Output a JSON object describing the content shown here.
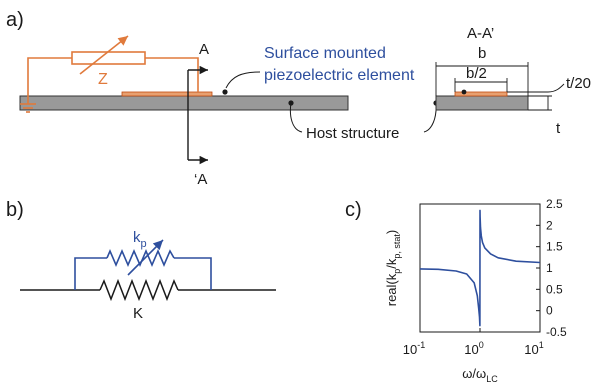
{
  "panels": {
    "a": {
      "label": "a)",
      "section_title": "A-A’",
      "section_a_top": "A",
      "section_a_bottom": "‘A",
      "impedance": "Z",
      "piezo_label_line1": "Surface mounted",
      "piezo_label_line2": "piezoelectric element",
      "host_label": "Host structure",
      "dim_b": "b",
      "dim_b_half": "b/2",
      "dim_t": "t",
      "dim_t20": "t/20",
      "colors": {
        "circuit": "#e07a3c",
        "label_blue": "#2e4f9e",
        "host_fill": "#999999"
      }
    },
    "b": {
      "label": "b)",
      "kp_main": "k",
      "kp_sub": "p",
      "spring": "K",
      "colors": {
        "kp": "#2e4f9e",
        "spring": "#1a1a1a"
      }
    },
    "c": {
      "label": "c)"
    }
  },
  "chart_data": {
    "type": "line",
    "xscale": "log",
    "xlim": [
      0.1,
      10
    ],
    "ylim": [
      -0.5,
      2.5
    ],
    "x_ticks": [
      {
        "base": "10",
        "exp": "-1"
      },
      {
        "base": "10",
        "exp": "0"
      },
      {
        "base": "10",
        "exp": "1"
      }
    ],
    "y_ticks": [
      "2.5",
      "2",
      "1.5",
      "1",
      "0.5",
      "0",
      "-0.5"
    ],
    "y_tick_values": [
      2.5,
      2,
      1.5,
      1,
      0.5,
      0,
      -0.5
    ],
    "xlabel": {
      "omega": "ω/ω",
      "sub": "LC"
    },
    "ylabel": {
      "pre": "real(k",
      "sub1": "p",
      "mid": "/k",
      "sub2": "p, stat",
      "post": ")"
    },
    "series": [
      {
        "color": "#2e4f9e",
        "x": [
          0.1,
          0.2,
          0.4,
          0.6,
          0.8,
          0.9,
          0.95,
          0.98,
          0.995,
          1.0,
          1.005,
          1.02,
          1.05,
          1.1,
          1.2,
          1.5,
          2,
          4,
          10
        ],
        "y": [
          0.98,
          0.97,
          0.93,
          0.86,
          0.65,
          0.35,
          0.05,
          -0.15,
          -0.35,
          2.35,
          2.2,
          1.95,
          1.75,
          1.6,
          1.47,
          1.33,
          1.24,
          1.16,
          1.13
        ]
      }
    ]
  }
}
